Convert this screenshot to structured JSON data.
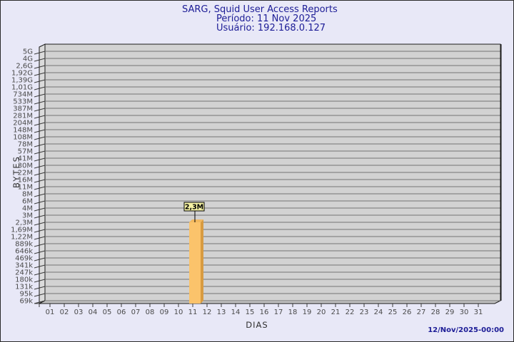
{
  "header": {
    "title": "SARG, Squid User Access Reports",
    "period": "Período: 11 Nov 2025",
    "user": "Usuário: 192.168.0.127"
  },
  "footer": {
    "timestamp": "12/Nov/2025-00:00"
  },
  "chart_data": {
    "type": "bar",
    "title": "SARG, Squid User Access Reports",
    "subtitle": "Período: 11 Nov 2025",
    "user_line": "Usuário: 192.168.0.127",
    "xlabel": "DIAS",
    "ylabel": "BYTES",
    "x_categories": [
      "01",
      "02",
      "03",
      "04",
      "05",
      "06",
      "07",
      "08",
      "09",
      "10",
      "11",
      "12",
      "13",
      "14",
      "15",
      "16",
      "17",
      "18",
      "19",
      "20",
      "21",
      "22",
      "23",
      "24",
      "25",
      "26",
      "27",
      "28",
      "29",
      "30",
      "31"
    ],
    "y_tick_labels": [
      "5G",
      "4G",
      "2,6G",
      "1,92G",
      "1,39G",
      "1,01G",
      "734M",
      "533M",
      "387M",
      "281M",
      "204M",
      "148M",
      "108M",
      "78M",
      "57M",
      "41M",
      "30M",
      "22M",
      "16M",
      "11M",
      "8M",
      "6M",
      "4M",
      "3M",
      "2,3M",
      "1,69M",
      "1,22M",
      "889k",
      "646k",
      "469k",
      "341k",
      "247k",
      "180k",
      "131k",
      "95k",
      "69k"
    ],
    "values": [
      0,
      0,
      0,
      0,
      0,
      0,
      0,
      0,
      0,
      0,
      2300000,
      0,
      0,
      0,
      0,
      0,
      0,
      0,
      0,
      0,
      0,
      0,
      0,
      0,
      0,
      0,
      0,
      0,
      0,
      0,
      0
    ],
    "bars": [
      {
        "day": "11",
        "value_label": "2,3M",
        "y_tick": "2,3M",
        "value_bytes": 2300000
      }
    ],
    "grid": "horizontal",
    "legend_position": "none"
  },
  "colors": {
    "background": "#E8E8F7",
    "title_text": "#1c1c96",
    "timestamp_text": "#1c1c96",
    "plot_face": "#D2D2D2",
    "plot_wall": "#DBDBDB",
    "plot_floor": "#C3C3C3",
    "grid_line": "#747474",
    "outline": "#1a1a1a",
    "axis_text": "#4a4a4a",
    "bar_front": "#FBC36B",
    "bar_side": "#D89B41",
    "bar_top": "#F2B85F",
    "value_box_bg": "#F5F2A3",
    "value_box_text": "#000000"
  }
}
